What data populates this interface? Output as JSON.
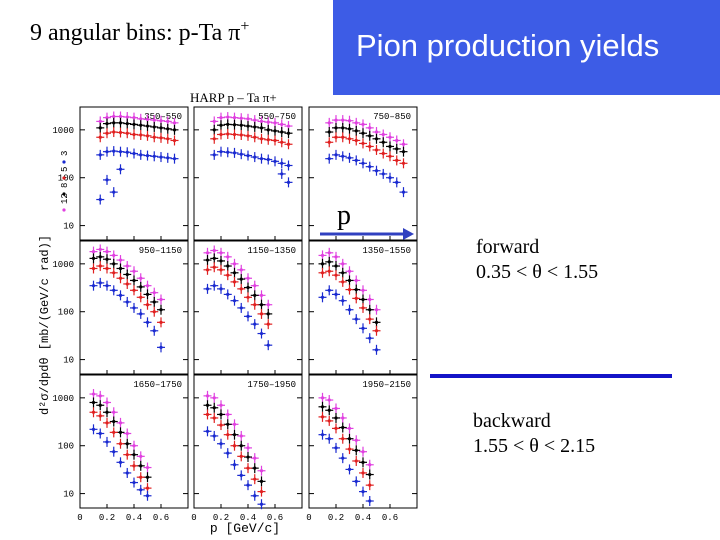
{
  "slide": {
    "heading": "9 angular bins: p-Ta  π",
    "heading_sup": "+",
    "title": "Pion production yields",
    "arrow_label": "p",
    "forward_label": "forward",
    "forward_range": "0.35 <  θ < 1.55",
    "backward_label": "backward",
    "backward_range": "1.55 <  θ < 2.15",
    "separator_color": "#1414c8",
    "title_box_color": "#3d5ce6"
  },
  "chart_data": {
    "type": "scatter",
    "title": "HARP  p – Ta  π+",
    "xlabel": "p  [GeV/c]",
    "ylabel": "d²σ/dpdθ  [mb/(GeV/c rad)]",
    "xlim": [
      0,
      0.8
    ],
    "ylim": [
      5,
      3000
    ],
    "y_scale": "log",
    "x_tick_labels": [
      "0",
      "0.2",
      "0.4",
      "0.6"
    ],
    "y_tick_labels": [
      "10",
      "100",
      "1000"
    ],
    "legend": [
      "12",
      "8",
      "5",
      "3"
    ],
    "legend_position": "left",
    "series_colors": [
      "#e040e0",
      "#000000",
      "#e02020",
      "#1a2ad0"
    ],
    "panels": [
      {
        "label": "350–550",
        "x": [
          0.15,
          0.2,
          0.25,
          0.3,
          0.35,
          0.4,
          0.45,
          0.5,
          0.55,
          0.6,
          0.65,
          0.7
        ],
        "series": [
          {
            "values": [
              1500,
              1800,
              1900,
              1900,
              1850,
              1800,
              1700,
              1650,
              1600,
              1550,
              1500,
              1400
            ]
          },
          {
            "values": [
              1100,
              1350,
              1400,
              1400,
              1350,
              1300,
              1250,
              1200,
              1150,
              1100,
              1050,
              1000
            ]
          },
          {
            "values": [
              700,
              850,
              900,
              880,
              850,
              800,
              780,
              750,
              700,
              680,
              650,
              600
            ]
          },
          {
            "values": [
              300,
              350,
              360,
              350,
              340,
              320,
              300,
              290,
              280,
              270,
              260,
              250
            ]
          },
          {
            "values": [
              35,
              90,
              50,
              150,
              null,
              null,
              null,
              null,
              null,
              null,
              null,
              null
            ]
          }
        ]
      },
      {
        "label": "550–750",
        "x": [
          0.15,
          0.2,
          0.25,
          0.3,
          0.35,
          0.4,
          0.45,
          0.5,
          0.55,
          0.6,
          0.65,
          0.7
        ],
        "series": [
          {
            "values": [
              1500,
              1800,
              1850,
              1800,
              1750,
              1700,
              1600,
              1500,
              1450,
              1400,
              1300,
              1200
            ]
          },
          {
            "values": [
              1000,
              1250,
              1300,
              1280,
              1250,
              1200,
              1150,
              1100,
              1000,
              950,
              900,
              850
            ]
          },
          {
            "values": [
              650,
              800,
              820,
              800,
              780,
              750,
              700,
              650,
              620,
              600,
              550,
              500
            ]
          },
          {
            "values": [
              300,
              350,
              340,
              330,
              310,
              290,
              270,
              250,
              240,
              220,
              200,
              180
            ]
          },
          {
            "values": [
              null,
              null,
              null,
              null,
              null,
              null,
              null,
              null,
              null,
              null,
              120,
              80
            ]
          }
        ]
      },
      {
        "label": "750–850",
        "x": [
          0.15,
          0.2,
          0.25,
          0.3,
          0.35,
          0.4,
          0.45,
          0.5,
          0.55,
          0.6,
          0.65,
          0.7
        ],
        "series": [
          {
            "values": [
              1400,
              1600,
              1600,
              1550,
              1400,
              1300,
              1100,
              900,
              800,
              700,
              600,
              500
            ]
          },
          {
            "values": [
              900,
              1100,
              1100,
              1050,
              950,
              850,
              750,
              650,
              550,
              450,
              400,
              350
            ]
          },
          {
            "values": [
              550,
              700,
              700,
              650,
              600,
              520,
              450,
              380,
              320,
              280,
              230,
              200
            ]
          },
          {
            "values": [
              250,
              300,
              280,
              260,
              230,
              200,
              170,
              140,
              120,
              100,
              80,
              50
            ]
          }
        ]
      },
      {
        "label": "950–1150",
        "x": [
          0.1,
          0.15,
          0.2,
          0.25,
          0.3,
          0.35,
          0.4,
          0.45,
          0.5,
          0.55,
          0.6
        ],
        "series": [
          {
            "values": [
              1800,
              2000,
              1800,
              1500,
              1200,
              900,
              700,
              500,
              350,
              250,
              180
            ]
          },
          {
            "values": [
              1300,
              1400,
              1250,
              1000,
              800,
              600,
              450,
              330,
              230,
              160,
              110
            ]
          },
          {
            "values": [
              800,
              900,
              800,
              650,
              500,
              380,
              280,
              200,
              140,
              100,
              60
            ]
          },
          {
            "values": [
              350,
              400,
              350,
              280,
              220,
              160,
              120,
              90,
              60,
              40,
              18
            ]
          }
        ]
      },
      {
        "label": "1150–1350",
        "x": [
          0.1,
          0.15,
          0.2,
          0.25,
          0.3,
          0.35,
          0.4,
          0.45,
          0.5,
          0.55
        ],
        "series": [
          {
            "values": [
              1700,
              1900,
              1700,
              1400,
              1000,
              750,
              500,
              350,
              220,
              140
            ]
          },
          {
            "values": [
              1200,
              1300,
              1150,
              900,
              650,
              480,
              320,
              220,
              140,
              90
            ]
          },
          {
            "values": [
              750,
              850,
              750,
              580,
              420,
              300,
              200,
              140,
              90,
              55
            ]
          },
          {
            "values": [
              300,
              350,
              300,
              230,
              170,
              120,
              80,
              55,
              35,
              20
            ]
          }
        ]
      },
      {
        "label": "1350–1550",
        "x": [
          0.1,
          0.15,
          0.2,
          0.25,
          0.3,
          0.35,
          0.4,
          0.45,
          0.5
        ],
        "series": [
          {
            "values": [
              1500,
              1700,
              1400,
              1000,
              700,
              450,
              280,
              180,
              110
            ]
          },
          {
            "values": [
              1000,
              1100,
              900,
              650,
              450,
              290,
              180,
              110,
              60
            ]
          },
          {
            "values": [
              650,
              700,
              580,
              420,
              290,
              190,
              120,
              70,
              40
            ]
          },
          {
            "values": [
              200,
              280,
              230,
              170,
              110,
              70,
              45,
              28,
              16
            ]
          }
        ]
      },
      {
        "label": "1650–1750",
        "x": [
          0.1,
          0.15,
          0.2,
          0.25,
          0.3,
          0.35,
          0.4,
          0.45,
          0.5
        ],
        "series": [
          {
            "values": [
              1200,
              1100,
              800,
              500,
              300,
              180,
              100,
              60,
              35
            ]
          },
          {
            "values": [
              800,
              700,
              500,
              320,
              190,
              110,
              65,
              38,
              22
            ]
          },
          {
            "values": [
              500,
              420,
              300,
              190,
              110,
              65,
              38,
              22,
              13
            ]
          },
          {
            "values": [
              220,
              180,
              120,
              75,
              45,
              27,
              17,
              12,
              9
            ]
          }
        ]
      },
      {
        "label": "1750–1950",
        "x": [
          0.1,
          0.15,
          0.2,
          0.25,
          0.3,
          0.35,
          0.4,
          0.45,
          0.5
        ],
        "series": [
          {
            "values": [
              1100,
              1000,
              700,
              450,
              280,
              160,
              90,
              55,
              30
            ]
          },
          {
            "values": [
              700,
              620,
              450,
              280,
              170,
              100,
              58,
              34,
              18
            ]
          },
          {
            "values": [
              450,
              380,
              270,
              170,
              100,
              60,
              34,
              20,
              11
            ]
          },
          {
            "values": [
              200,
              160,
              110,
              70,
              40,
              24,
              15,
              9,
              6
            ]
          }
        ]
      },
      {
        "label": "1950–2150",
        "x": [
          0.1,
          0.15,
          0.2,
          0.25,
          0.3,
          0.35,
          0.4,
          0.45
        ],
        "series": [
          {
            "values": [
              1000,
              900,
              600,
              380,
              230,
              130,
              75,
              40
            ]
          },
          {
            "values": [
              650,
              550,
              380,
              240,
              140,
              80,
              45,
              25
            ]
          },
          {
            "values": [
              400,
              330,
              230,
              140,
              85,
              48,
              27,
              15
            ]
          },
          {
            "values": [
              170,
              140,
              90,
              55,
              32,
              18,
              11,
              7
            ]
          }
        ]
      }
    ]
  }
}
